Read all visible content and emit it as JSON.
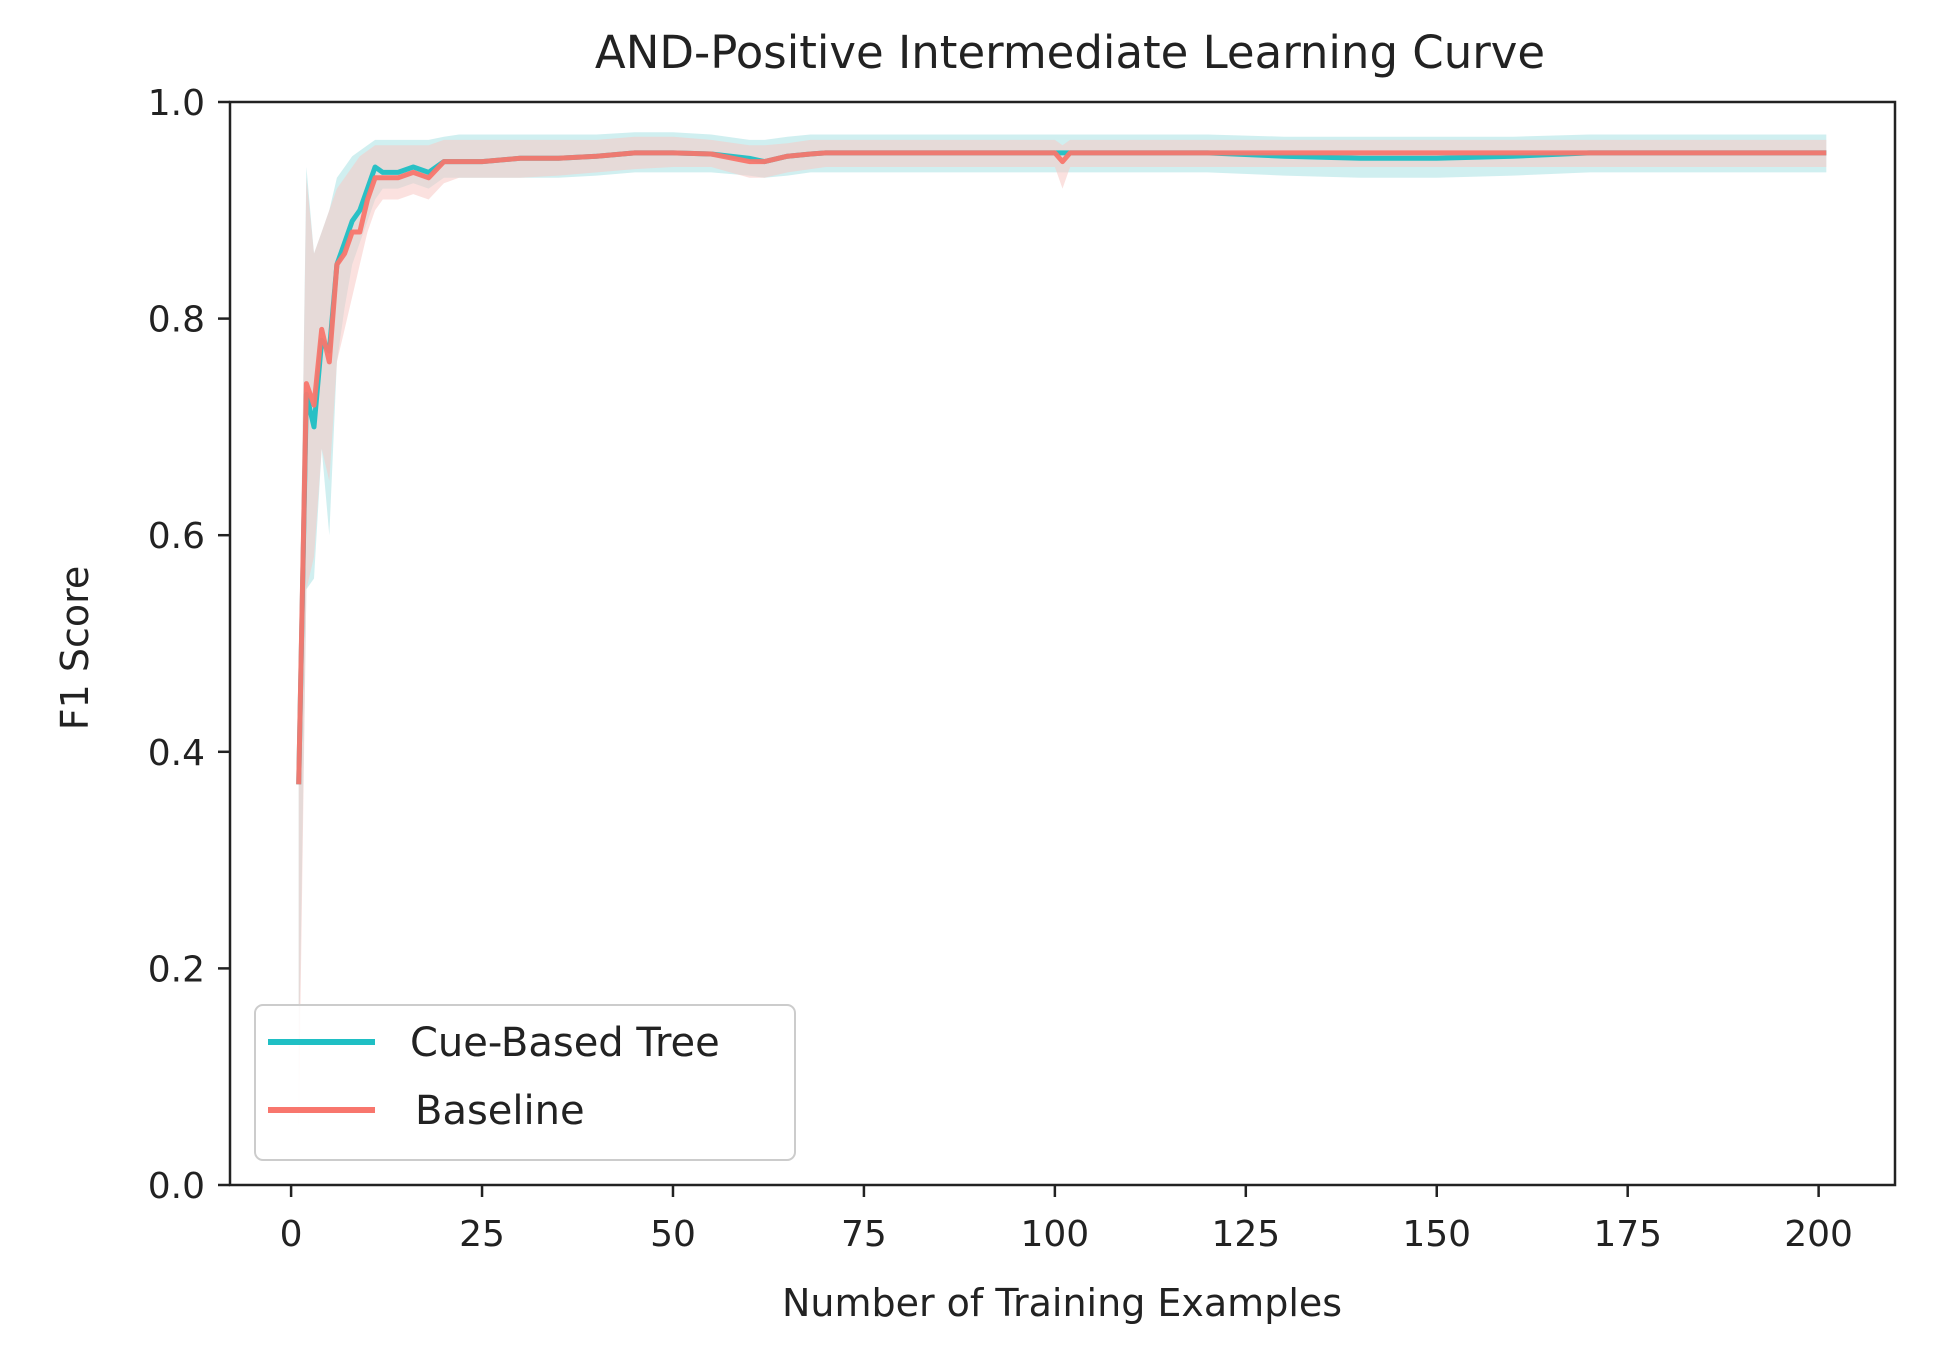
{
  "chart_data": {
    "type": "line",
    "title": "AND-Positive Intermediate Learning Curve",
    "xlabel": "Number of Training Examples",
    "ylabel": "F1 Score",
    "xlim": [
      -8,
      210
    ],
    "ylim": [
      0.0,
      1.0
    ],
    "xticks": [
      0,
      25,
      50,
      75,
      100,
      125,
      150,
      175,
      200
    ],
    "xtick_labels": [
      "0",
      "25",
      "50",
      "75",
      "100",
      "125",
      "150",
      "175",
      "200"
    ],
    "yticks": [
      0.0,
      0.2,
      0.4,
      0.6,
      0.8,
      1.0
    ],
    "ytick_labels": [
      "0.0",
      "0.2",
      "0.4",
      "0.6",
      "0.8",
      "1.0"
    ],
    "grid": false,
    "legend_position": "lower-left",
    "series": [
      {
        "name": "Cue-Based Tree",
        "color": "#1fbfc4",
        "band_color": "#a9e2e3",
        "x": [
          1,
          2,
          3,
          4,
          5,
          6,
          7,
          8,
          9,
          10,
          11,
          12,
          14,
          16,
          18,
          20,
          22,
          25,
          30,
          35,
          40,
          45,
          50,
          55,
          60,
          62,
          65,
          68,
          70,
          75,
          80,
          90,
          100,
          110,
          120,
          130,
          140,
          150,
          160,
          170,
          180,
          190,
          201
        ],
        "y": [
          0.37,
          0.73,
          0.7,
          0.78,
          0.77,
          0.85,
          0.87,
          0.89,
          0.9,
          0.92,
          0.94,
          0.935,
          0.935,
          0.94,
          0.935,
          0.945,
          0.945,
          0.945,
          0.948,
          0.948,
          0.95,
          0.953,
          0.953,
          0.952,
          0.948,
          0.945,
          0.95,
          0.952,
          0.953,
          0.953,
          0.953,
          0.953,
          0.953,
          0.953,
          0.953,
          0.95,
          0.948,
          0.948,
          0.95,
          0.953,
          0.953,
          0.953,
          0.953
        ],
        "lower": [
          0.1,
          0.55,
          0.56,
          0.68,
          0.6,
          0.76,
          0.81,
          0.85,
          0.87,
          0.89,
          0.91,
          0.92,
          0.92,
          0.925,
          0.92,
          0.93,
          0.93,
          0.93,
          0.93,
          0.93,
          0.932,
          0.935,
          0.935,
          0.935,
          0.932,
          0.93,
          0.932,
          0.935,
          0.935,
          0.935,
          0.935,
          0.935,
          0.935,
          0.935,
          0.935,
          0.932,
          0.93,
          0.93,
          0.932,
          0.935,
          0.935,
          0.935,
          0.935
        ],
        "upper": [
          0.45,
          0.94,
          0.86,
          0.88,
          0.9,
          0.93,
          0.94,
          0.95,
          0.955,
          0.96,
          0.965,
          0.965,
          0.965,
          0.965,
          0.965,
          0.968,
          0.97,
          0.97,
          0.97,
          0.97,
          0.97,
          0.972,
          0.972,
          0.97,
          0.965,
          0.965,
          0.968,
          0.97,
          0.97,
          0.97,
          0.97,
          0.97,
          0.97,
          0.97,
          0.97,
          0.968,
          0.968,
          0.968,
          0.968,
          0.97,
          0.97,
          0.97,
          0.97
        ]
      },
      {
        "name": "Baseline",
        "color": "#f8766d",
        "band_color": "#f7c9c4",
        "x": [
          1,
          2,
          3,
          4,
          5,
          6,
          7,
          8,
          9,
          10,
          11,
          12,
          14,
          16,
          18,
          20,
          22,
          25,
          30,
          35,
          40,
          45,
          50,
          55,
          60,
          62,
          65,
          68,
          70,
          75,
          80,
          90,
          100,
          101,
          102,
          110,
          120,
          130,
          140,
          150,
          160,
          170,
          180,
          190,
          201
        ],
        "y": [
          0.37,
          0.74,
          0.72,
          0.79,
          0.76,
          0.85,
          0.86,
          0.88,
          0.88,
          0.91,
          0.93,
          0.93,
          0.93,
          0.935,
          0.93,
          0.945,
          0.945,
          0.945,
          0.948,
          0.948,
          0.95,
          0.953,
          0.953,
          0.952,
          0.945,
          0.945,
          0.95,
          0.952,
          0.953,
          0.953,
          0.953,
          0.953,
          0.953,
          0.945,
          0.953,
          0.953,
          0.953,
          0.953,
          0.953,
          0.953,
          0.953,
          0.953,
          0.953,
          0.953,
          0.953
        ],
        "lower": [
          0.05,
          0.55,
          0.58,
          0.68,
          0.65,
          0.76,
          0.79,
          0.82,
          0.85,
          0.88,
          0.9,
          0.91,
          0.91,
          0.915,
          0.91,
          0.925,
          0.93,
          0.93,
          0.93,
          0.932,
          0.935,
          0.938,
          0.94,
          0.94,
          0.93,
          0.93,
          0.935,
          0.938,
          0.94,
          0.94,
          0.94,
          0.94,
          0.94,
          0.92,
          0.94,
          0.94,
          0.94,
          0.94,
          0.94,
          0.94,
          0.94,
          0.94,
          0.94,
          0.94,
          0.94
        ],
        "upper": [
          0.45,
          0.93,
          0.86,
          0.88,
          0.9,
          0.92,
          0.93,
          0.94,
          0.95,
          0.955,
          0.96,
          0.96,
          0.96,
          0.96,
          0.96,
          0.965,
          0.965,
          0.965,
          0.965,
          0.965,
          0.965,
          0.968,
          0.968,
          0.965,
          0.96,
          0.96,
          0.962,
          0.965,
          0.965,
          0.965,
          0.965,
          0.965,
          0.965,
          0.96,
          0.965,
          0.965,
          0.965,
          0.965,
          0.965,
          0.965,
          0.965,
          0.965,
          0.965,
          0.965,
          0.965
        ]
      }
    ]
  }
}
